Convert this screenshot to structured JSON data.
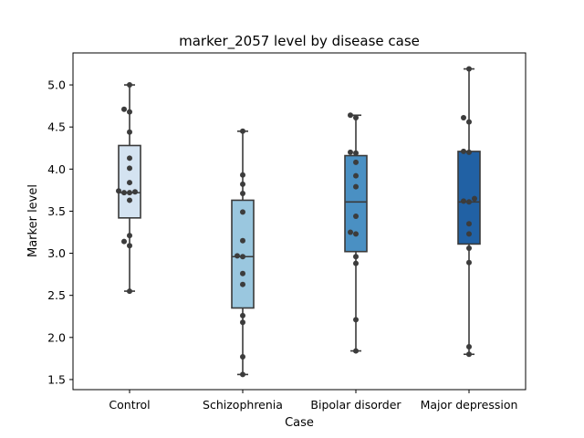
{
  "chart_data": {
    "type": "box",
    "title": "marker_2057 level by disease case",
    "xlabel": "Case",
    "ylabel": "Marker level",
    "ylim": [
      1.38,
      5.38
    ],
    "yticks": [
      1.5,
      2.0,
      2.5,
      3.0,
      3.5,
      4.0,
      4.5,
      5.0
    ],
    "ytick_labels": [
      "1.5",
      "2.0",
      "2.5",
      "3.0",
      "3.5",
      "4.0",
      "4.5",
      "5.0"
    ],
    "grid": false,
    "categories": [
      "Control",
      "Schizophrenia",
      "Bipolar disorder",
      "Major depression"
    ],
    "boxes": [
      {
        "category": "Control",
        "min": 2.55,
        "q1": 3.42,
        "median": 3.72,
        "q3": 4.28,
        "max": 5.0,
        "color": "#d4e3f1"
      },
      {
        "category": "Schizophrenia",
        "min": 1.56,
        "q1": 2.35,
        "median": 2.96,
        "q3": 3.63,
        "max": 4.45,
        "color": "#9ac7df"
      },
      {
        "category": "Bipolar disorder",
        "min": 1.84,
        "q1": 3.02,
        "median": 3.61,
        "q3": 4.16,
        "max": 4.64,
        "color": "#4a90c3"
      },
      {
        "category": "Major depression",
        "min": 1.8,
        "q1": 3.11,
        "median": 3.61,
        "q3": 4.21,
        "max": 5.19,
        "color": "#2161a4"
      }
    ],
    "points": [
      [
        5.0,
        4.71,
        4.68,
        4.44,
        4.13,
        4.01,
        3.84,
        3.74,
        3.73,
        3.72,
        3.72,
        3.63,
        3.21,
        3.14,
        3.09,
        2.55
      ],
      [
        4.45,
        3.93,
        3.82,
        3.71,
        3.49,
        3.15,
        2.97,
        2.96,
        2.76,
        2.63,
        2.26,
        2.18,
        1.77,
        1.56
      ],
      [
        4.64,
        4.61,
        4.2,
        4.19,
        4.08,
        3.92,
        3.79,
        3.44,
        3.25,
        3.23,
        2.96,
        2.88,
        2.21,
        1.84
      ],
      [
        5.19,
        4.61,
        4.56,
        4.21,
        4.2,
        3.65,
        3.62,
        3.61,
        3.35,
        3.23,
        3.06,
        2.89,
        1.89,
        1.8
      ]
    ]
  }
}
